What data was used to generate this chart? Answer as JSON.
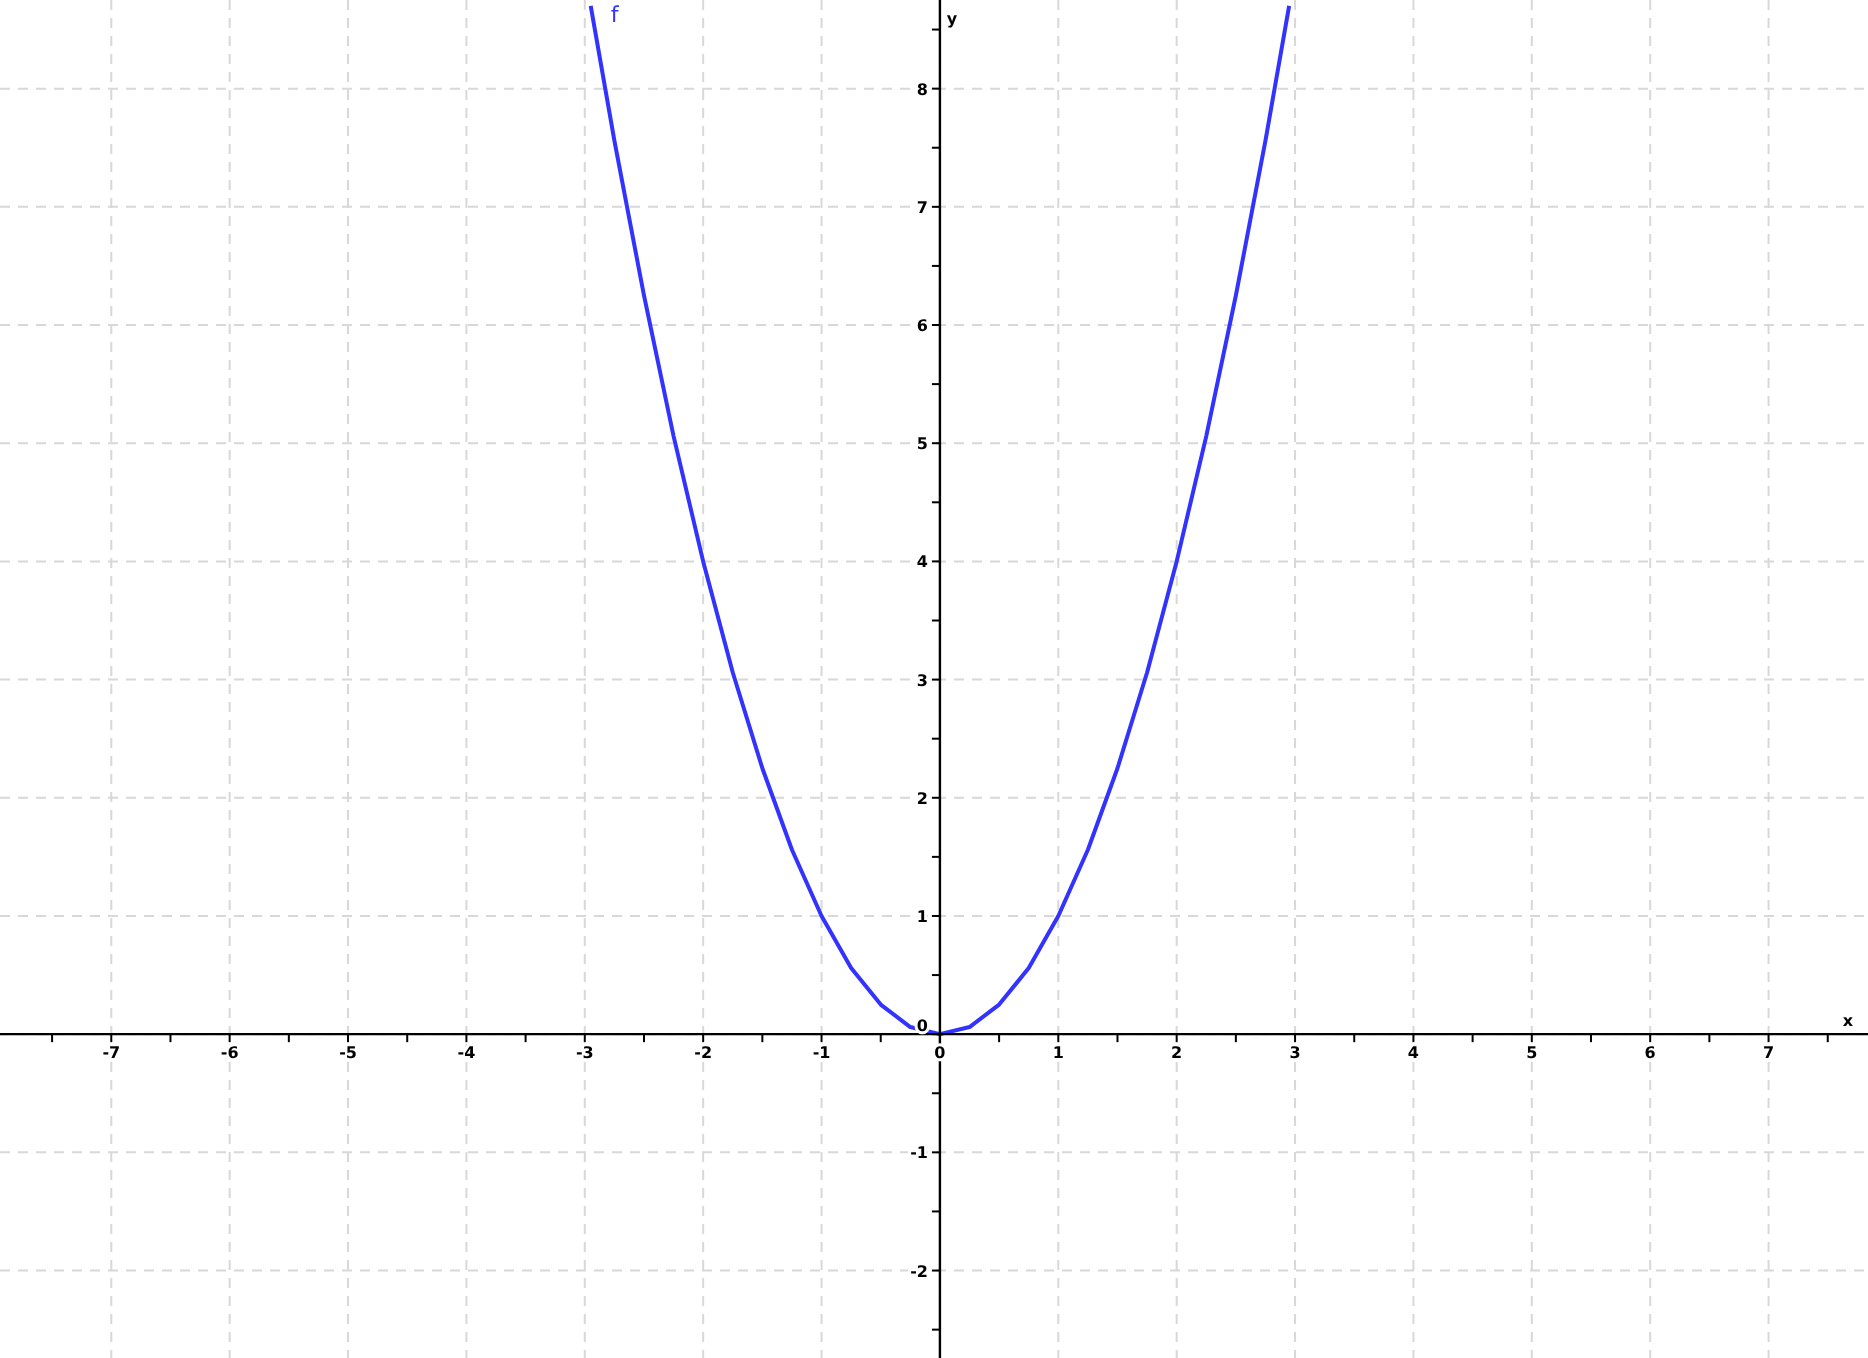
{
  "chart_data": {
    "type": "line",
    "xlabel": "x",
    "ylabel": "y",
    "xlim": [
      -7.94,
      7.84
    ],
    "ylim": [
      -2.74,
      8.75
    ],
    "xticks": [
      -7,
      -6,
      -5,
      -4,
      -3,
      -2,
      -1,
      0,
      1,
      2,
      3,
      4,
      5,
      6,
      7,
      {
        "value": -7.5,
        "label": null
      },
      {
        "value": -6.5,
        "label": null
      },
      {
        "value": -5.5,
        "label": null
      },
      {
        "value": -4.5,
        "label": null
      },
      {
        "value": -3.5,
        "label": null
      },
      {
        "value": -2.5,
        "label": null
      },
      {
        "value": -1.5,
        "label": null
      },
      {
        "value": -0.5,
        "label": null
      },
      {
        "value": 0.5,
        "label": null
      },
      {
        "value": 1.5,
        "label": null
      },
      {
        "value": 2.5,
        "label": null
      },
      {
        "value": 3.5,
        "label": null
      },
      {
        "value": 4.5,
        "label": null
      },
      {
        "value": 5.5,
        "label": null
      },
      {
        "value": 6.5,
        "label": null
      },
      {
        "value": 7.5,
        "label": null
      }
    ],
    "yticks": [
      -2,
      -1,
      0,
      1,
      2,
      3,
      4,
      5,
      6,
      7,
      8,
      {
        "value": -2.5,
        "label": null
      },
      {
        "value": -1.5,
        "label": null
      },
      {
        "value": -0.5,
        "label": null
      },
      {
        "value": 0.5,
        "label": null
      },
      {
        "value": 1.5,
        "label": null
      },
      {
        "value": 2.5,
        "label": null
      },
      {
        "value": 3.5,
        "label": null
      },
      {
        "value": 4.5,
        "label": null
      },
      {
        "value": 5.5,
        "label": null
      },
      {
        "value": 6.5,
        "label": null
      },
      {
        "value": 7.5,
        "label": null
      },
      {
        "value": 8.5,
        "label": null
      }
    ],
    "grid": true,
    "legend": false,
    "marker": "none",
    "line_style": "solid",
    "series": [
      {
        "name": "f",
        "color": "#3333ff",
        "x": [
          -2.95,
          -2.75,
          -2.5,
          -2.25,
          -2,
          -1.75,
          -1.5,
          -1.25,
          -1,
          -0.75,
          -0.5,
          -0.25,
          0,
          0.25,
          0.5,
          0.75,
          1,
          1.25,
          1.5,
          1.75,
          2,
          2.25,
          2.5,
          2.75,
          2.95
        ],
        "values": [
          8.7,
          7.56,
          6.25,
          5.06,
          4,
          3.06,
          2.25,
          1.56,
          1,
          0.56,
          0.25,
          0.06,
          0,
          0.06,
          0.25,
          0.56,
          1,
          1.56,
          2.25,
          3.06,
          4,
          5.06,
          6.25,
          7.56,
          8.7
        ]
      }
    ]
  }
}
